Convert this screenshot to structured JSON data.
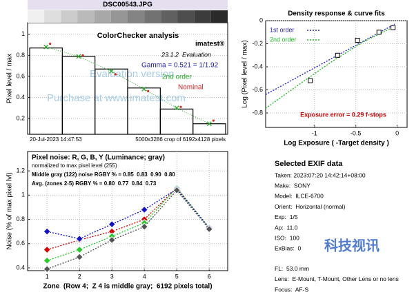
{
  "chart_data": [
    {
      "type": "bar",
      "image_name": "DSC00543.JPG",
      "title": "ColorChecker analysis",
      "ylabel": "Pixel level / max",
      "ylim": [
        0.05,
        1.11
      ],
      "yticks": [
        0.2,
        0.4,
        0.6,
        0.8,
        1
      ],
      "grid": true,
      "series": [
        {
          "kind": "bar",
          "color": "#000000",
          "values": [
            0.87,
            0.79,
            0.67,
            0.49,
            0.29,
            0.15
          ]
        },
        {
          "kind": "line",
          "name": "2nd order",
          "color": "#22aa22",
          "values": [
            0.88,
            0.79,
            0.65,
            0.48,
            0.3,
            0.15
          ]
        },
        {
          "kind": "scatter",
          "name": "Nominal",
          "color": "#dd2222",
          "values": [
            0.91,
            0.8,
            0.62,
            0.46,
            0.31,
            0.18
          ]
        }
      ],
      "annotations": {
        "logo": "imatest®",
        "version": "23.1.2  Evaluation",
        "gamma": "Gamma = 0.521 = 1/1.92",
        "timestamp": "20-Jul-2023 14:47:53",
        "crop": "5000x3286 crop of 6192x4128 pixels",
        "watermark_1": "Evaluation version",
        "watermark_2": "Purchase at www.imatest.com"
      }
    },
    {
      "type": "line",
      "title": "Density response & curve fits",
      "xlabel": "Log Exposure ( -Target density )",
      "ylabel": "Log (Pixel level / max)",
      "xlim": [
        -1.59,
        0.12
      ],
      "ylim": [
        -0.925,
        0
      ],
      "xticks": [
        -1,
        -0.5,
        0
      ],
      "yticks": [
        0,
        -0.2,
        -0.4,
        -0.6,
        -0.8
      ],
      "grid": true,
      "legend": "upper left",
      "series": [
        {
          "kind": "line",
          "name": "1st order",
          "color": "#2222cc",
          "x": [
            -1.59,
            -0.03
          ],
          "values": [
            -0.64,
            -0.03
          ]
        },
        {
          "kind": "line",
          "name": "2nd order",
          "color": "#22bb22",
          "x": [
            -1.59,
            -1.2,
            -0.8,
            -0.4,
            -0.03
          ],
          "values": [
            -0.76,
            -0.56,
            -0.36,
            -0.18,
            -0.05
          ]
        },
        {
          "kind": "scatter",
          "marker": "square",
          "color": "#000000",
          "x": [
            -1.05,
            -0.72,
            -0.48,
            -0.22,
            -0.05
          ],
          "values": [
            -0.52,
            -0.3,
            -0.17,
            -0.1,
            -0.06
          ]
        }
      ],
      "annotation": "Exposure error = 0.29 f-stops"
    },
    {
      "type": "line",
      "title": "Pixel noise: R, G, B, Y (Luminance; gray)",
      "subtitle": "normalized to max pixel level (255)",
      "notes": [
        "Middle gray (122) noise RGBY % = 0.85  0.83  0.90  0.80",
        "Avg. (zones 2-5) RGBY % = 0.80  0.77  0.84  0.73"
      ],
      "xlabel": "Zone  (Row 4;  Z 4 is middle gray;  6192 pixels total)",
      "ylabel": "Noise (% of max pixel lvl)",
      "xlim": [
        0.4,
        6.57
      ],
      "ylim": [
        0.377,
        1.36
      ],
      "xticks": [
        1,
        2,
        3,
        4,
        5,
        6
      ],
      "yticks": [
        0.4,
        0.6,
        0.8,
        1,
        1.2
      ],
      "grid": true,
      "series": [
        {
          "kind": "line",
          "marker": "diamond",
          "color": "#dd0000",
          "x": [
            1,
            2,
            3,
            4,
            5,
            6
          ],
          "values": [
            0.55,
            0.63,
            0.7,
            0.8,
            1.06,
            0.73
          ]
        },
        {
          "kind": "line",
          "marker": "diamond",
          "color": "#22cc22",
          "x": [
            1,
            2,
            3,
            4,
            5,
            6
          ],
          "values": [
            0.46,
            0.55,
            0.66,
            0.77,
            1.06,
            0.73
          ]
        },
        {
          "kind": "line",
          "marker": "diamond",
          "color": "#1111cc",
          "x": [
            1,
            2,
            3,
            4,
            5,
            6
          ],
          "values": [
            0.7,
            0.64,
            0.76,
            0.88,
            1.05,
            0.73
          ]
        },
        {
          "kind": "line",
          "marker": "diamond",
          "color": "#555555",
          "x": [
            1,
            2,
            3,
            4,
            5,
            6
          ],
          "values": [
            0.39,
            0.49,
            0.63,
            0.74,
            1.04,
            0.72
          ]
        }
      ]
    }
  ],
  "exif": {
    "title": "Selected EXIF data",
    "lines": [
      "Taken: 2023:07:20 14:42:14+08:00",
      "Make:  SONY",
      "Model:  ILCE-6700",
      "Orient:  Horizontal (normal)",
      "Exp:  1/5",
      "Ap:  11.0",
      "ISO:  100",
      "ExBias:  0",
      "FL:  53.0 mm",
      "Lens:  E-Mount, T-Mount, Other Lens or no lens",
      "Focus:  AF-S"
    ]
  },
  "logo": "科技视讯"
}
